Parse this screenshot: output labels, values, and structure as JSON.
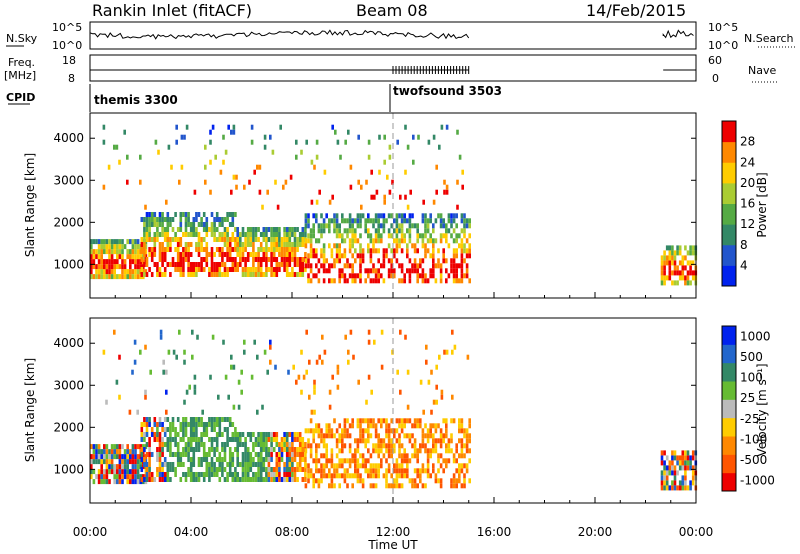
{
  "header": {
    "station": "Rankin Inlet (fitACF)",
    "beam": "Beam 08",
    "date": "14/Feb/2015"
  },
  "noise_panel": {
    "left_label": "N.Sky",
    "left_ticks": [
      "10^5",
      "10^0"
    ],
    "right_label": "N.Search",
    "right_ticks": [
      "10^5",
      "10^0"
    ],
    "right_legend_style": "dotted"
  },
  "freq_panel": {
    "left_label_line1": "Freq.",
    "left_label_line2": "[MHz]",
    "left_ticks": [
      18,
      8
    ],
    "right_label": "Nave",
    "right_ticks": [
      60,
      0
    ],
    "right_legend_style": "dotted"
  },
  "cpid": {
    "label": "CPID",
    "modes": [
      {
        "name": "themis 3300",
        "start_hour": 0.0
      },
      {
        "name": "twofsound 3503",
        "start_hour": 12.0
      }
    ]
  },
  "chart_data": [
    {
      "type": "heatmap",
      "name": "power",
      "xlabel": "",
      "ylabel": "Slant Range [km]",
      "xlim": [
        0,
        24
      ],
      "ylim": [
        200,
        4600
      ],
      "yticks": [
        1000,
        2000,
        3000,
        4000
      ],
      "colorbar": {
        "label": "Power [dB]",
        "ticks": [
          4,
          8,
          12,
          16,
          20,
          24,
          28
        ],
        "range": [
          0,
          32
        ],
        "colors": [
          "#0022ee",
          "#2255cc",
          "#338866",
          "#55aa44",
          "#aacc33",
          "#ffcc00",
          "#ff8800",
          "#ee0000"
        ]
      }
    },
    {
      "type": "heatmap",
      "name": "velocity",
      "xlabel": "Time UT",
      "ylabel": "Slant Range [km]",
      "xlim": [
        0,
        24
      ],
      "ylim": [
        200,
        4600
      ],
      "yticks": [
        1000,
        2000,
        3000,
        4000
      ],
      "xticks": [
        "00:00",
        "04:00",
        "08:00",
        "12:00",
        "16:00",
        "20:00",
        "00:00"
      ],
      "colorbar": {
        "label": "Velocity [m s⁻¹]",
        "ticks": [
          "1000",
          "500",
          "100",
          "25",
          "-25",
          "-100",
          "-500",
          "-1000"
        ],
        "colors": [
          "#0022ee",
          "#2266cc",
          "#338866",
          "#66bb33",
          "#bbbbbb",
          "#ffcc00",
          "#ff8800",
          "#ff5500",
          "#ee0000"
        ]
      }
    }
  ]
}
